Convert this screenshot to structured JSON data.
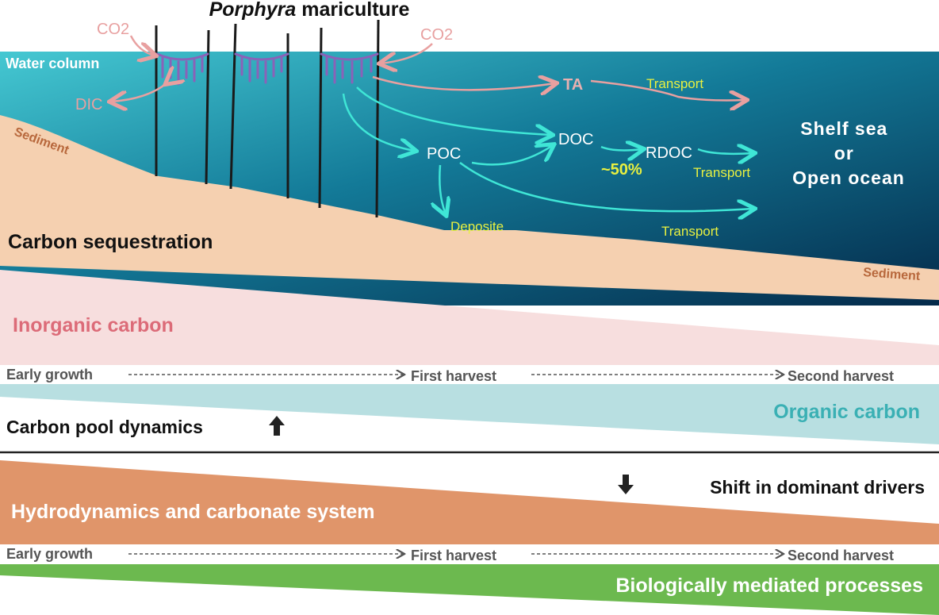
{
  "title": {
    "italic": "Porphyra",
    "rest": " mariculture"
  },
  "labels": {
    "co2_left": "CO2",
    "co2_right": "CO2",
    "water_column": "Water column",
    "dic": "DIC",
    "sediment_left": "Sediment",
    "sediment_right": "Sediment",
    "ta": "TA",
    "transport_ta": "Transport",
    "poc": "POC",
    "doc": "DOC",
    "rdoc": "RDOC",
    "percent": "~50%",
    "transport_rdoc": "Transport",
    "deposite": "Deposite",
    "transport_poc": "Transport",
    "destination": [
      "Shelf sea",
      "or",
      "Open ocean"
    ],
    "carbon_sequestration": "Carbon sequestration"
  },
  "pool": {
    "inorganic": "Inorganic carbon",
    "organic": "Organic carbon",
    "heading": "Carbon pool dynamics",
    "timeline": [
      "Early growth",
      "First harvest",
      "Second harvest"
    ]
  },
  "drivers": {
    "heading": "Shift in dominant drivers",
    "hydro": "Hydrodynamics and carbonate system",
    "bio": "Biologically mediated processes",
    "timeline": [
      "Early growth",
      "First harvest",
      "Second harvest"
    ]
  },
  "colors": {
    "water_top": "#40c3cf",
    "water_deep": "#05304f",
    "sediment": "#f5d0b0",
    "pink_arrow": "#e8a0a0",
    "cyan_arrow": "#3fe6d6",
    "yellow_text": "#e8f040",
    "inorganic_band": "#f7dede",
    "organic_band": "#b8dfe1",
    "hydro_band": "#e0956a",
    "bio_band": "#6cb94f"
  }
}
